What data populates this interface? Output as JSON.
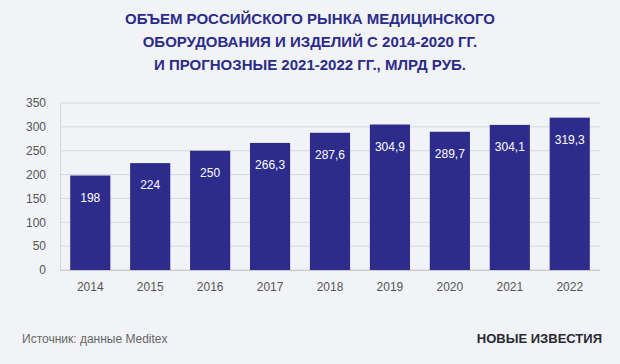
{
  "chart_data": {
    "type": "bar",
    "title": [
      "ОБЪЕМ РОССИЙСКОГО РЫНКА МЕДИЦИНСКОГО",
      "ОБОРУДОВАНИЯ И ИЗДЕЛИЙ С 2014-2020 ГГ.",
      "И ПРОГНОЗНЫЕ 2021-2022 ГГ., МЛРД РУБ."
    ],
    "categories": [
      "2014",
      "2015",
      "2016",
      "2017",
      "2018",
      "2019",
      "2020",
      "2021",
      "2022"
    ],
    "values": [
      198,
      224,
      250,
      266.3,
      287.6,
      304.9,
      289.7,
      304.1,
      319.3
    ],
    "value_labels": [
      "198",
      "224",
      "250",
      "266,3",
      "287,6",
      "304,9",
      "289,7",
      "304,1",
      "319,3"
    ],
    "color": "#2d2c8c",
    "ylim": [
      0,
      350
    ],
    "yticks": [
      0,
      50,
      100,
      150,
      200,
      250,
      300,
      350
    ],
    "grid": true,
    "data_labels": true,
    "annotations": [
      "Источник: данные Meditex",
      "НОВЫЕ ИЗВЕСТИЯ"
    ]
  }
}
